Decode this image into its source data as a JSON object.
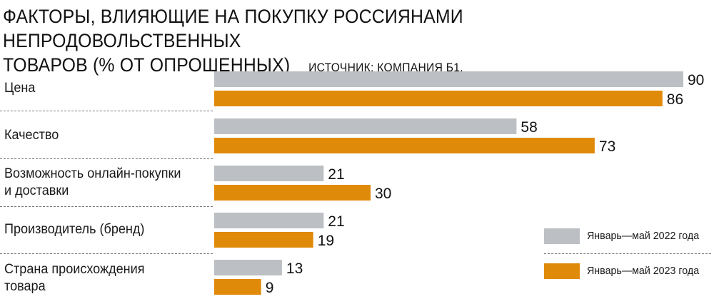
{
  "chart_data": {
    "type": "bar",
    "orientation": "horizontal",
    "title": "ФАКТОРЫ, ВЛИЯЮЩИЕ НА ПОКУПКУ РОССИЯНАМИ НЕПРОДОВОЛЬСТВЕННЫХ ТОВАРОВ (% ОТ ОПРОШЕННЫХ)",
    "source": "ИСТОЧНИК: КОМПАНИЯ Б1.",
    "categories": [
      "Цена",
      "Качество",
      "Возможность онлайн-покупки и доставки",
      "Производитель (бренд)",
      "Страна происхождения товара"
    ],
    "series": [
      {
        "name": "Январь—май 2022 года",
        "color": "#bcc0c4",
        "values": [
          90,
          58,
          21,
          21,
          13
        ]
      },
      {
        "name": "Январь—май 2023 года",
        "color": "#e08a0a",
        "values": [
          86,
          73,
          30,
          19,
          9
        ]
      }
    ],
    "xlim": [
      0,
      90
    ],
    "legend_position": "bottom-right",
    "grid": false
  },
  "labels": {
    "line1": "ФАКТОРЫ, ВЛИЯЮЩИЕ НА ПОКУПКУ РОССИЯНАМИ НЕПРОДОВОЛЬСТВЕННЫХ",
    "line2": "ТОВАРОВ (% ОТ ОПРОШЕННЫХ)",
    "cat": [
      [
        "Цена"
      ],
      [
        "Качество"
      ],
      [
        "Возможность онлайн-покупки",
        "и доставки"
      ],
      [
        "Производитель (бренд)"
      ],
      [
        "Страна происхождения",
        "товара"
      ]
    ]
  }
}
